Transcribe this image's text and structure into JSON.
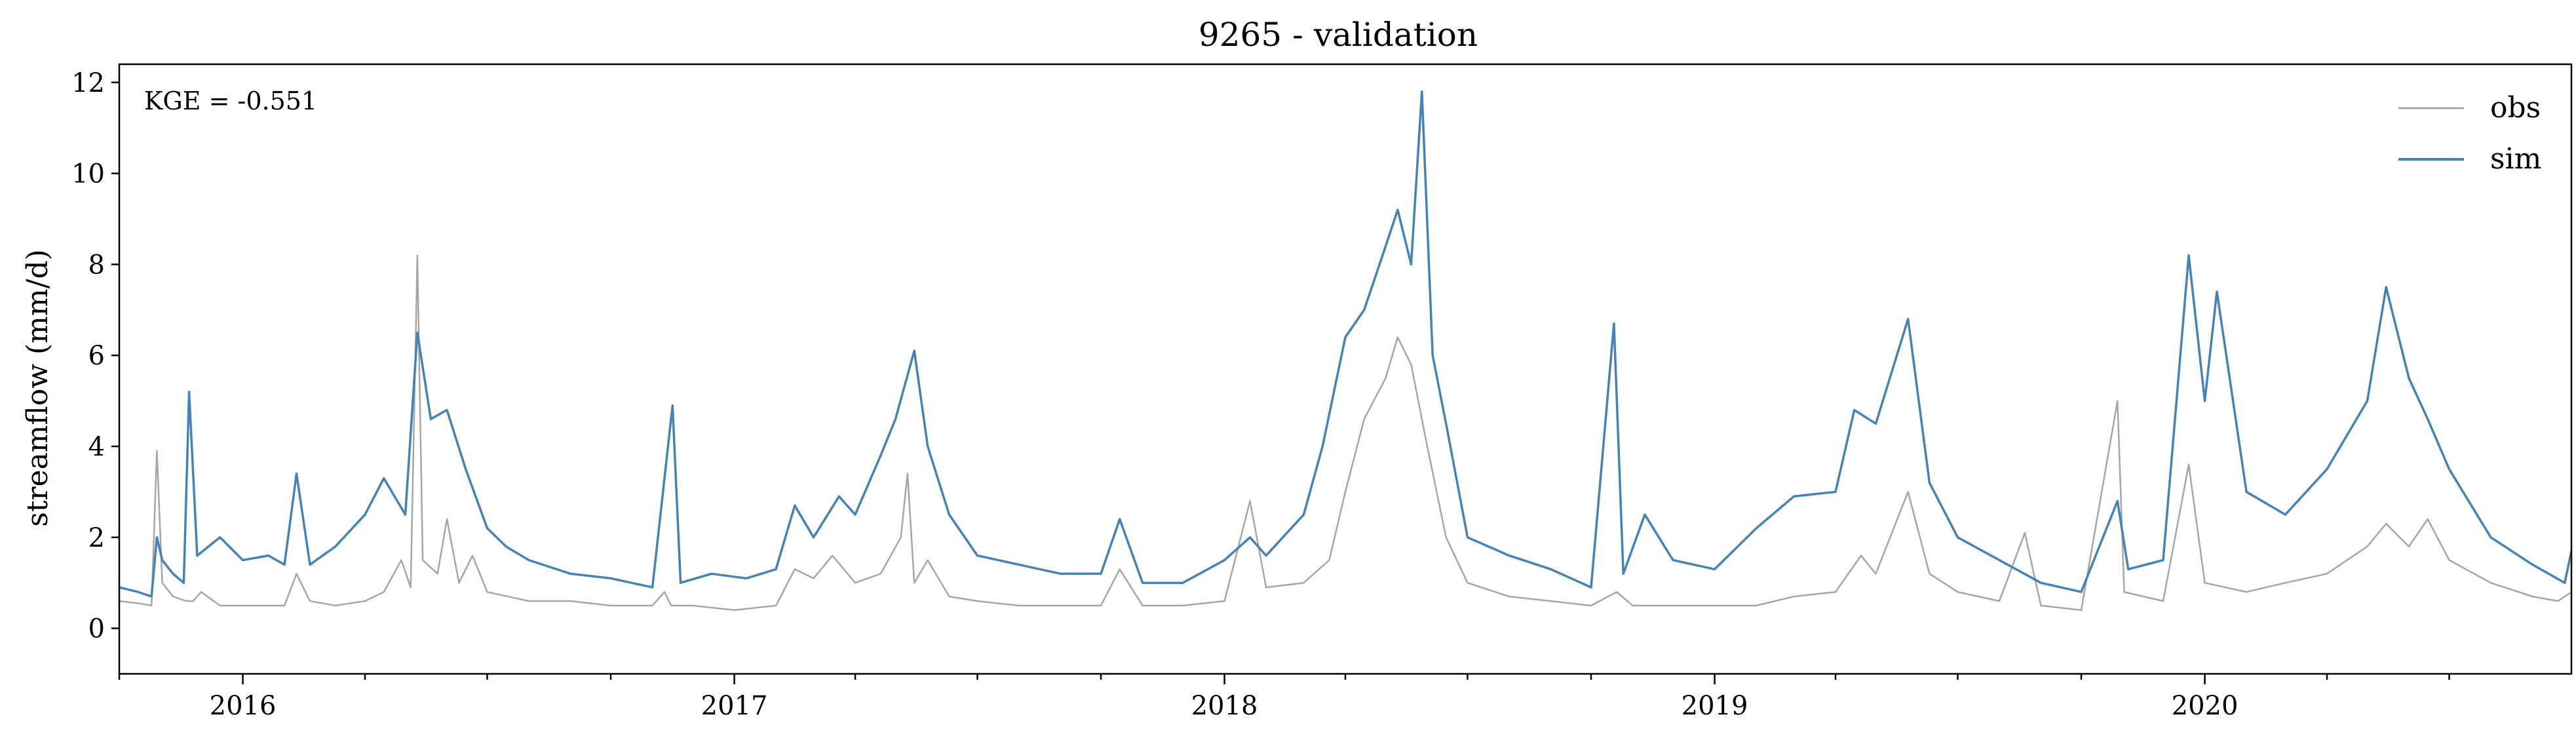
{
  "chart_data": {
    "type": "line",
    "title": "9265 - validation",
    "xlabel": "",
    "ylabel": "streamflow (mm/d)",
    "xlim": [
      "2015-10-01",
      "2020-09-30"
    ],
    "ylim": [
      -1,
      12.4
    ],
    "yticks": [
      0,
      2,
      4,
      6,
      8,
      10,
      12
    ],
    "xticks": [
      "2016",
      "2017",
      "2018",
      "2019",
      "2020"
    ],
    "grid": false,
    "legend": "top-right",
    "annotation": "KGE = -0.551",
    "series": [
      {
        "name": "obs",
        "color": "#a6a6a6",
        "points": [
          [
            "2015-10-01",
            0.6
          ],
          [
            "2015-10-15",
            0.55
          ],
          [
            "2015-10-25",
            0.5
          ],
          [
            "2015-10-29",
            3.9
          ],
          [
            "2015-11-02",
            1.0
          ],
          [
            "2015-11-10",
            0.7
          ],
          [
            "2015-11-20",
            0.6
          ],
          [
            "2015-11-25",
            0.6
          ],
          [
            "2015-12-01",
            0.8
          ],
          [
            "2015-12-15",
            0.5
          ],
          [
            "2016-01-10",
            0.5
          ],
          [
            "2016-02-01",
            0.5
          ],
          [
            "2016-02-10",
            1.2
          ],
          [
            "2016-02-20",
            0.6
          ],
          [
            "2016-03-10",
            0.5
          ],
          [
            "2016-04-01",
            0.6
          ],
          [
            "2016-04-15",
            0.8
          ],
          [
            "2016-04-28",
            1.5
          ],
          [
            "2016-05-05",
            0.9
          ],
          [
            "2016-05-10",
            8.2
          ],
          [
            "2016-05-14",
            1.5
          ],
          [
            "2016-05-25",
            1.2
          ],
          [
            "2016-06-01",
            2.4
          ],
          [
            "2016-06-10",
            1.0
          ],
          [
            "2016-06-20",
            1.6
          ],
          [
            "2016-07-01",
            0.8
          ],
          [
            "2016-08-01",
            0.6
          ],
          [
            "2016-09-01",
            0.6
          ],
          [
            "2016-10-01",
            0.5
          ],
          [
            "2016-11-01",
            0.5
          ],
          [
            "2016-11-10",
            0.8
          ],
          [
            "2016-11-15",
            0.5
          ],
          [
            "2016-12-01",
            0.5
          ],
          [
            "2017-01-01",
            0.4
          ],
          [
            "2017-02-01",
            0.5
          ],
          [
            "2017-02-15",
            1.3
          ],
          [
            "2017-03-01",
            1.1
          ],
          [
            "2017-03-15",
            1.6
          ],
          [
            "2017-04-01",
            1.0
          ],
          [
            "2017-04-20",
            1.2
          ],
          [
            "2017-05-05",
            2.0
          ],
          [
            "2017-05-10",
            3.4
          ],
          [
            "2017-05-15",
            1.0
          ],
          [
            "2017-05-25",
            1.5
          ],
          [
            "2017-06-10",
            0.7
          ],
          [
            "2017-07-01",
            0.6
          ],
          [
            "2017-08-01",
            0.5
          ],
          [
            "2017-09-01",
            0.5
          ],
          [
            "2017-10-01",
            0.5
          ],
          [
            "2017-10-15",
            1.3
          ],
          [
            "2017-11-01",
            0.5
          ],
          [
            "2017-12-01",
            0.5
          ],
          [
            "2018-01-01",
            0.6
          ],
          [
            "2018-01-20",
            2.8
          ],
          [
            "2018-02-01",
            0.9
          ],
          [
            "2018-03-01",
            1.0
          ],
          [
            "2018-03-20",
            1.5
          ],
          [
            "2018-04-01",
            3.0
          ],
          [
            "2018-04-15",
            4.6
          ],
          [
            "2018-05-01",
            5.5
          ],
          [
            "2018-05-10",
            6.4
          ],
          [
            "2018-05-20",
            5.8
          ],
          [
            "2018-06-01",
            4.0
          ],
          [
            "2018-06-15",
            2.0
          ],
          [
            "2018-07-01",
            1.0
          ],
          [
            "2018-08-01",
            0.7
          ],
          [
            "2018-09-01",
            0.6
          ],
          [
            "2018-10-01",
            0.5
          ],
          [
            "2018-10-20",
            0.8
          ],
          [
            "2018-11-01",
            0.5
          ],
          [
            "2018-12-01",
            0.5
          ],
          [
            "2019-01-01",
            0.5
          ],
          [
            "2019-02-01",
            0.5
          ],
          [
            "2019-03-01",
            0.7
          ],
          [
            "2019-04-01",
            0.8
          ],
          [
            "2019-04-20",
            1.6
          ],
          [
            "2019-05-01",
            1.2
          ],
          [
            "2019-05-25",
            3.0
          ],
          [
            "2019-06-10",
            1.2
          ],
          [
            "2019-07-01",
            0.8
          ],
          [
            "2019-08-01",
            0.6
          ],
          [
            "2019-08-20",
            2.1
          ],
          [
            "2019-09-01",
            0.5
          ],
          [
            "2019-10-01",
            0.4
          ],
          [
            "2019-10-28",
            5.0
          ],
          [
            "2019-11-02",
            0.8
          ],
          [
            "2019-12-01",
            0.6
          ],
          [
            "2019-12-20",
            3.6
          ],
          [
            "2020-01-01",
            1.0
          ],
          [
            "2020-02-01",
            0.8
          ],
          [
            "2020-03-01",
            1.0
          ],
          [
            "2020-04-01",
            1.2
          ],
          [
            "2020-05-01",
            1.8
          ],
          [
            "2020-05-15",
            2.3
          ],
          [
            "2020-06-01",
            1.8
          ],
          [
            "2020-06-15",
            2.4
          ],
          [
            "2020-07-01",
            1.5
          ],
          [
            "2020-08-01",
            1.0
          ],
          [
            "2020-09-01",
            0.7
          ],
          [
            "2020-09-20",
            0.6
          ],
          [
            "2020-09-30",
            0.8
          ]
        ]
      },
      {
        "name": "sim",
        "color": "#4682b4",
        "points": [
          [
            "2015-10-01",
            0.9
          ],
          [
            "2015-10-15",
            0.8
          ],
          [
            "2015-10-25",
            0.7
          ],
          [
            "2015-10-29",
            2.0
          ],
          [
            "2015-11-02",
            1.5
          ],
          [
            "2015-11-10",
            1.2
          ],
          [
            "2015-11-18",
            1.0
          ],
          [
            "2015-11-22",
            5.2
          ],
          [
            "2015-11-28",
            1.6
          ],
          [
            "2015-12-15",
            2.0
          ],
          [
            "2016-01-01",
            1.5
          ],
          [
            "2016-01-20",
            1.6
          ],
          [
            "2016-02-01",
            1.4
          ],
          [
            "2016-02-10",
            3.4
          ],
          [
            "2016-02-20",
            1.4
          ],
          [
            "2016-03-10",
            1.8
          ],
          [
            "2016-04-01",
            2.5
          ],
          [
            "2016-04-15",
            3.3
          ],
          [
            "2016-05-01",
            2.5
          ],
          [
            "2016-05-10",
            6.5
          ],
          [
            "2016-05-20",
            4.6
          ],
          [
            "2016-06-01",
            4.8
          ],
          [
            "2016-06-15",
            3.5
          ],
          [
            "2016-07-01",
            2.2
          ],
          [
            "2016-07-15",
            1.8
          ],
          [
            "2016-08-01",
            1.5
          ],
          [
            "2016-09-01",
            1.2
          ],
          [
            "2016-10-01",
            1.1
          ],
          [
            "2016-11-01",
            0.9
          ],
          [
            "2016-11-16",
            4.9
          ],
          [
            "2016-11-22",
            1.0
          ],
          [
            "2016-12-15",
            1.2
          ],
          [
            "2017-01-10",
            1.1
          ],
          [
            "2017-02-01",
            1.3
          ],
          [
            "2017-02-15",
            2.7
          ],
          [
            "2017-03-01",
            2.0
          ],
          [
            "2017-03-20",
            2.9
          ],
          [
            "2017-04-01",
            2.5
          ],
          [
            "2017-04-20",
            3.8
          ],
          [
            "2017-05-01",
            4.6
          ],
          [
            "2017-05-15",
            6.1
          ],
          [
            "2017-05-25",
            4.0
          ],
          [
            "2017-06-10",
            2.5
          ],
          [
            "2017-07-01",
            1.6
          ],
          [
            "2017-08-01",
            1.4
          ],
          [
            "2017-09-01",
            1.2
          ],
          [
            "2017-10-01",
            1.2
          ],
          [
            "2017-10-15",
            2.4
          ],
          [
            "2017-11-01",
            1.0
          ],
          [
            "2017-12-01",
            1.0
          ],
          [
            "2018-01-01",
            1.5
          ],
          [
            "2018-01-20",
            2.0
          ],
          [
            "2018-02-01",
            1.6
          ],
          [
            "2018-03-01",
            2.5
          ],
          [
            "2018-03-15",
            4.0
          ],
          [
            "2018-04-01",
            6.4
          ],
          [
            "2018-04-15",
            7.0
          ],
          [
            "2018-05-01",
            8.4
          ],
          [
            "2018-05-10",
            9.2
          ],
          [
            "2018-05-20",
            8.0
          ],
          [
            "2018-05-28",
            11.8
          ],
          [
            "2018-06-05",
            6.0
          ],
          [
            "2018-06-15",
            4.5
          ],
          [
            "2018-07-01",
            2.0
          ],
          [
            "2018-08-01",
            1.6
          ],
          [
            "2018-09-01",
            1.3
          ],
          [
            "2018-10-01",
            0.9
          ],
          [
            "2018-10-18",
            6.7
          ],
          [
            "2018-10-25",
            1.2
          ],
          [
            "2018-11-10",
            2.5
          ],
          [
            "2018-12-01",
            1.5
          ],
          [
            "2019-01-01",
            1.3
          ],
          [
            "2019-02-01",
            2.2
          ],
          [
            "2019-03-01",
            2.9
          ],
          [
            "2019-04-01",
            3.0
          ],
          [
            "2019-04-15",
            4.8
          ],
          [
            "2019-05-01",
            4.5
          ],
          [
            "2019-05-25",
            6.8
          ],
          [
            "2019-06-10",
            3.2
          ],
          [
            "2019-07-01",
            2.0
          ],
          [
            "2019-08-01",
            1.5
          ],
          [
            "2019-09-01",
            1.0
          ],
          [
            "2019-10-01",
            0.8
          ],
          [
            "2019-10-28",
            2.8
          ],
          [
            "2019-11-05",
            1.3
          ],
          [
            "2019-12-01",
            1.5
          ],
          [
            "2019-12-20",
            8.2
          ],
          [
            "2020-01-01",
            5.0
          ],
          [
            "2020-01-10",
            7.4
          ],
          [
            "2020-02-01",
            3.0
          ],
          [
            "2020-03-01",
            2.5
          ],
          [
            "2020-04-01",
            3.5
          ],
          [
            "2020-05-01",
            5.0
          ],
          [
            "2020-05-15",
            7.5
          ],
          [
            "2020-06-01",
            5.5
          ],
          [
            "2020-06-15",
            4.6
          ],
          [
            "2020-07-01",
            3.5
          ],
          [
            "2020-08-01",
            2.0
          ],
          [
            "2020-09-01",
            1.4
          ],
          [
            "2020-09-25",
            1.0
          ],
          [
            "2020-09-30",
            1.7
          ]
        ]
      }
    ]
  }
}
